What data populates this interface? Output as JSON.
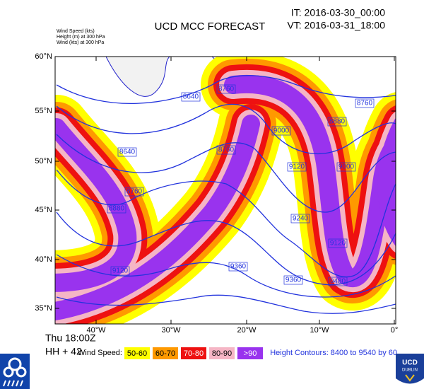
{
  "header": {
    "title": "UCD MCC FORECAST",
    "init_time": "IT: 2016-03-30_00:00",
    "valid_time": "VT: 2016-03-31_18:00",
    "fields": [
      "Wind Speed   (kts)",
      "Height  (m)     at   300 hPa",
      "Wind    (kts)     at   300 hPa"
    ]
  },
  "map": {
    "lat_labels": [
      "60°N",
      "55°N",
      "50°N",
      "45°N",
      "40°N",
      "35°N"
    ],
    "lon_labels": [
      "40°W",
      "30°W",
      "20°W",
      "10°W",
      "0°"
    ],
    "contour_labels": [
      "8640",
      "8760",
      "8640",
      "8760",
      "8760",
      "8880",
      "9000",
      "9000",
      "9120",
      "9240",
      "9120",
      "9360",
      "9360",
      "9480",
      "9120",
      "8760",
      "8880"
    ]
  },
  "footer": {
    "time": "Thu 18:00Z",
    "lead": "HH + 42",
    "legend_title": "Wind Speed:",
    "legend": [
      {
        "label": "50-60",
        "color": "#ffff00"
      },
      {
        "label": "60-70",
        "color": "#ff9900"
      },
      {
        "label": "70-80",
        "color": "#ee1111"
      },
      {
        "label": "80-90",
        "color": "#f5b5c5"
      },
      {
        "label": ">90",
        "color": "#9933ee"
      }
    ],
    "contours": "Height Contours: 8400 to 9540 by 60",
    "logo": [
      "UCD",
      "DUBLIN"
    ]
  }
}
